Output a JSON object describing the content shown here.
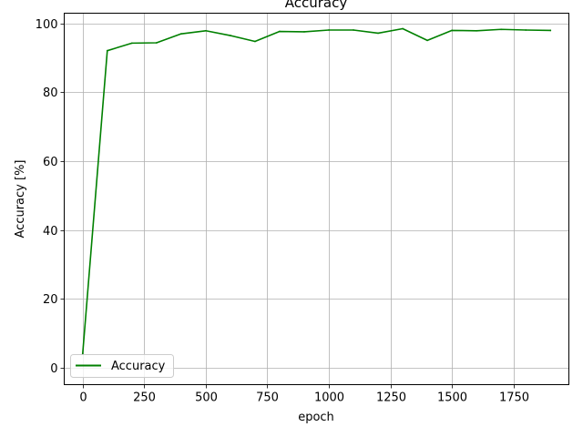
{
  "chart_data": {
    "type": "line",
    "title": "Accuracy",
    "xlabel": "epoch",
    "ylabel": "Accuracy [%]",
    "xlim": [
      -75,
      1975
    ],
    "ylim": [
      -5,
      103
    ],
    "x_ticks": [
      0,
      250,
      500,
      750,
      1000,
      1250,
      1500,
      1750
    ],
    "y_ticks": [
      0,
      20,
      40,
      60,
      80,
      100
    ],
    "grid": true,
    "legend_placement": "lower-left",
    "x": [
      0,
      100,
      200,
      300,
      400,
      500,
      600,
      700,
      800,
      900,
      1000,
      1100,
      1200,
      1300,
      1400,
      1500,
      1600,
      1700,
      1800,
      1900
    ],
    "series": [
      {
        "name": "Accuracy",
        "color": "#008000",
        "values": [
          4,
          92.1,
          94.3,
          94.4,
          97.0,
          97.9,
          96.5,
          94.8,
          97.7,
          97.6,
          98.1,
          98.1,
          97.2,
          98.5,
          95.1,
          98.0,
          97.9,
          98.3,
          98.1,
          98.0
        ]
      }
    ]
  }
}
